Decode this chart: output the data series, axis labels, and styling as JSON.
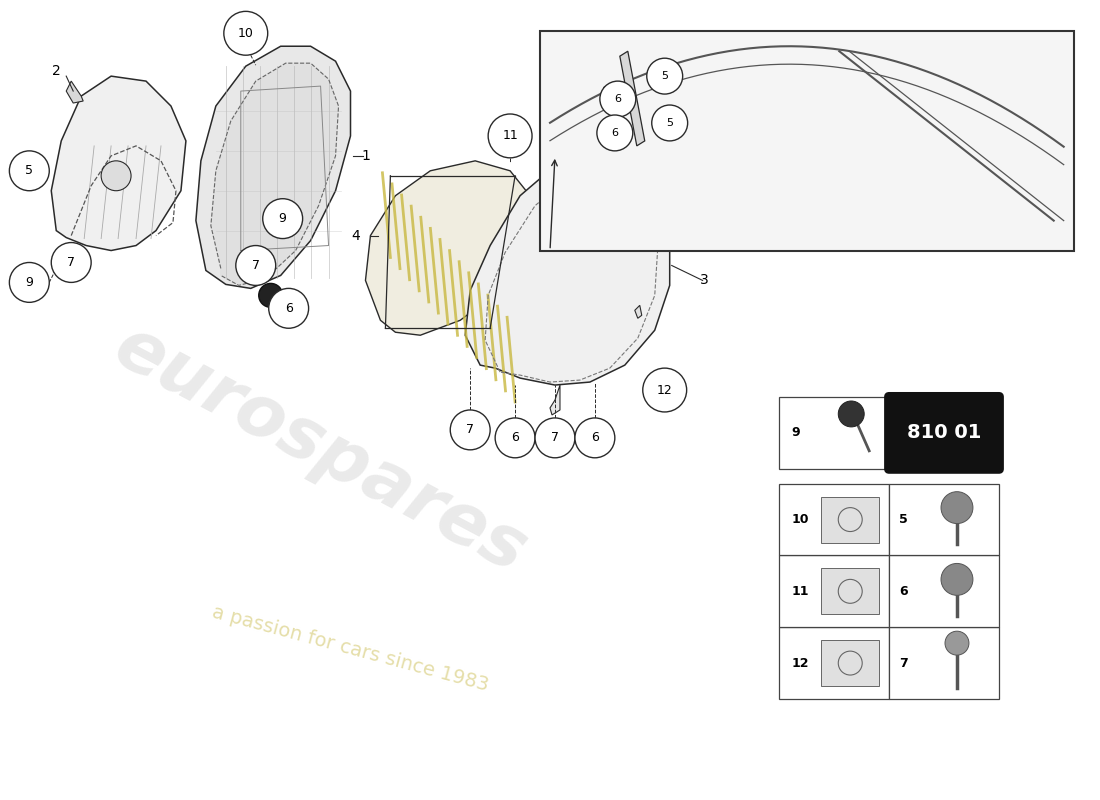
{
  "bg_color": "#ffffff",
  "part_number": "810 01",
  "watermark_color": "#c8c8c8",
  "watermark_yellow": "#d4c870",
  "line_color": "#2a2a2a",
  "inset_bg": "#f5f5f5",
  "part_fill_a": "#f0f0f0",
  "part_fill_b": "#e8e8e8",
  "part_fill_c": "#f0ede0",
  "louver_color": "#c8b840",
  "table_bg": "#ffffff",
  "table_border": "#444444"
}
